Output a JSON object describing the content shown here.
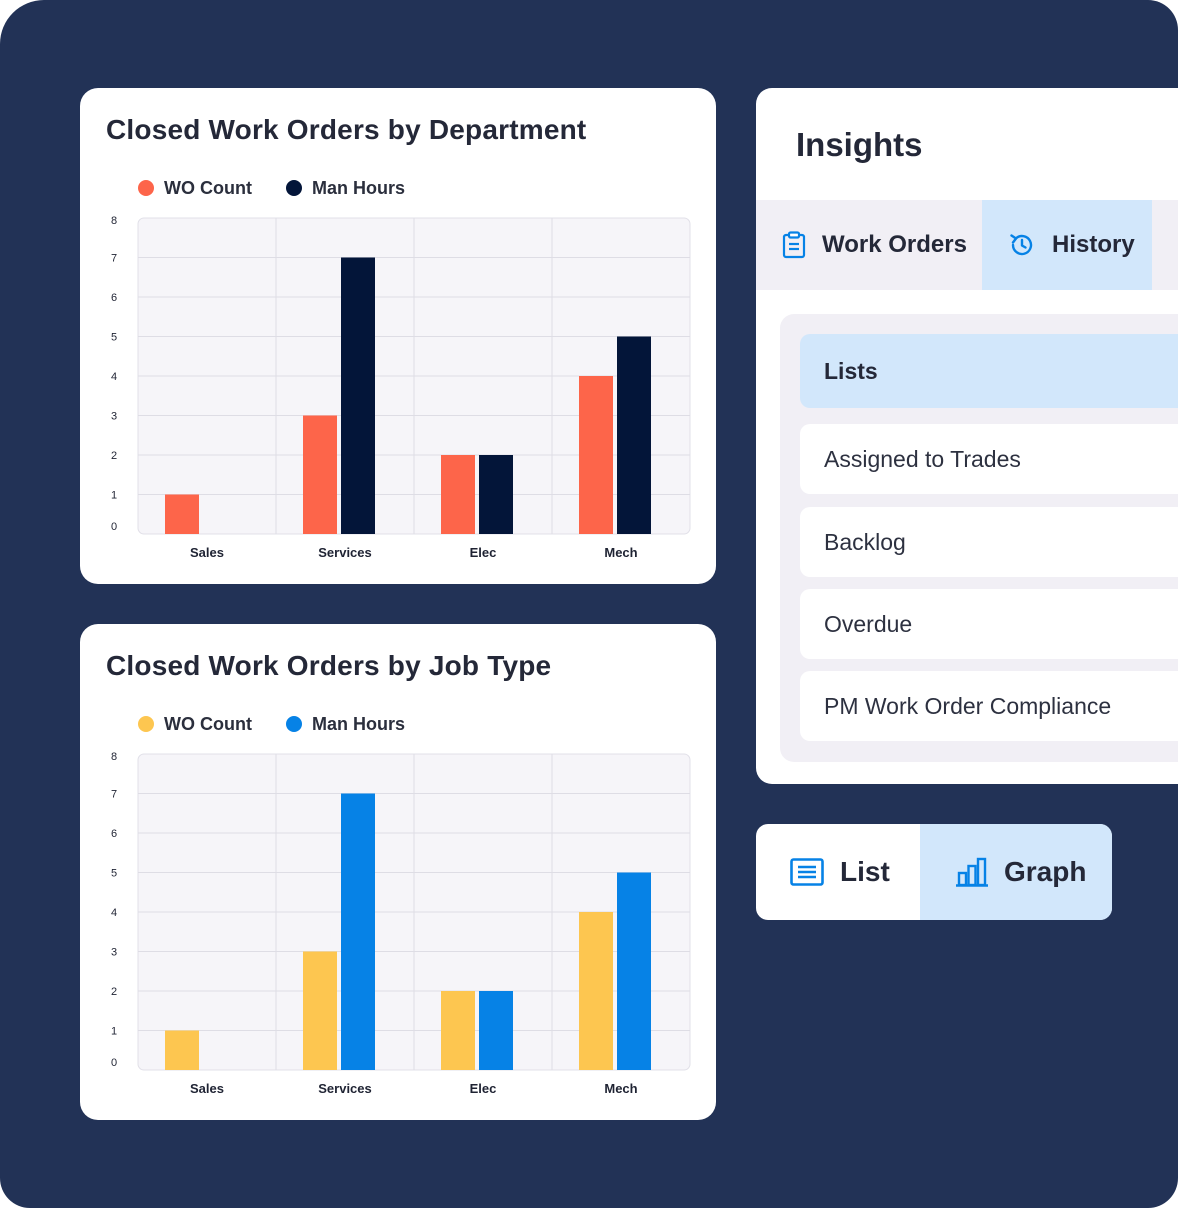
{
  "chart_data": [
    {
      "type": "bar",
      "title": "Closed Work Orders by Department",
      "categories": [
        "Sales",
        "Services",
        "Elec",
        "Mech"
      ],
      "series": [
        {
          "name": "WO Count",
          "values": [
            1,
            3,
            2,
            4
          ],
          "color": "#fd654a"
        },
        {
          "name": "Man Hours",
          "values": [
            0,
            7,
            2,
            5
          ],
          "color": "#031539"
        }
      ],
      "y_ticks": [
        "0",
        "1",
        "2",
        "3",
        "4",
        "5",
        "6",
        "7",
        "8"
      ],
      "ylim": [
        0,
        8
      ],
      "grid": true,
      "legend_position": "top-left"
    },
    {
      "type": "bar",
      "title": "Closed Work Orders by Job Type",
      "categories": [
        "Sales",
        "Services",
        "Elec",
        "Mech"
      ],
      "series": [
        {
          "name": "WO Count",
          "values": [
            1,
            3,
            2,
            4
          ],
          "color": "#fdc650"
        },
        {
          "name": "Man Hours",
          "values": [
            0,
            7,
            2,
            5
          ],
          "color": "#0682e6"
        }
      ],
      "y_ticks": [
        "0",
        "1",
        "2",
        "3",
        "4",
        "5",
        "6",
        "7",
        "8"
      ],
      "ylim": [
        0,
        8
      ],
      "grid": true,
      "legend_position": "top-left"
    }
  ],
  "insights": {
    "title": "Insights",
    "tabs": [
      {
        "label": "Work Orders",
        "icon": "clipboard-icon",
        "active": false
      },
      {
        "label": "History",
        "icon": "history-icon",
        "active": true
      }
    ],
    "items": [
      {
        "label": "Lists",
        "active": true
      },
      {
        "label": "Assigned to Trades",
        "active": false
      },
      {
        "label": "Backlog",
        "active": false
      },
      {
        "label": "Overdue",
        "active": false
      },
      {
        "label": "PM Work Order Compliance",
        "active": false
      }
    ]
  },
  "view_toggle": {
    "options": [
      {
        "label": "List",
        "icon": "list-icon",
        "active": false
      },
      {
        "label": "Graph",
        "icon": "bar-chart-icon",
        "active": true
      }
    ]
  },
  "colors": {
    "background": "#223256",
    "accent": "#0682e6",
    "active_bg": "#d2e7fb"
  }
}
